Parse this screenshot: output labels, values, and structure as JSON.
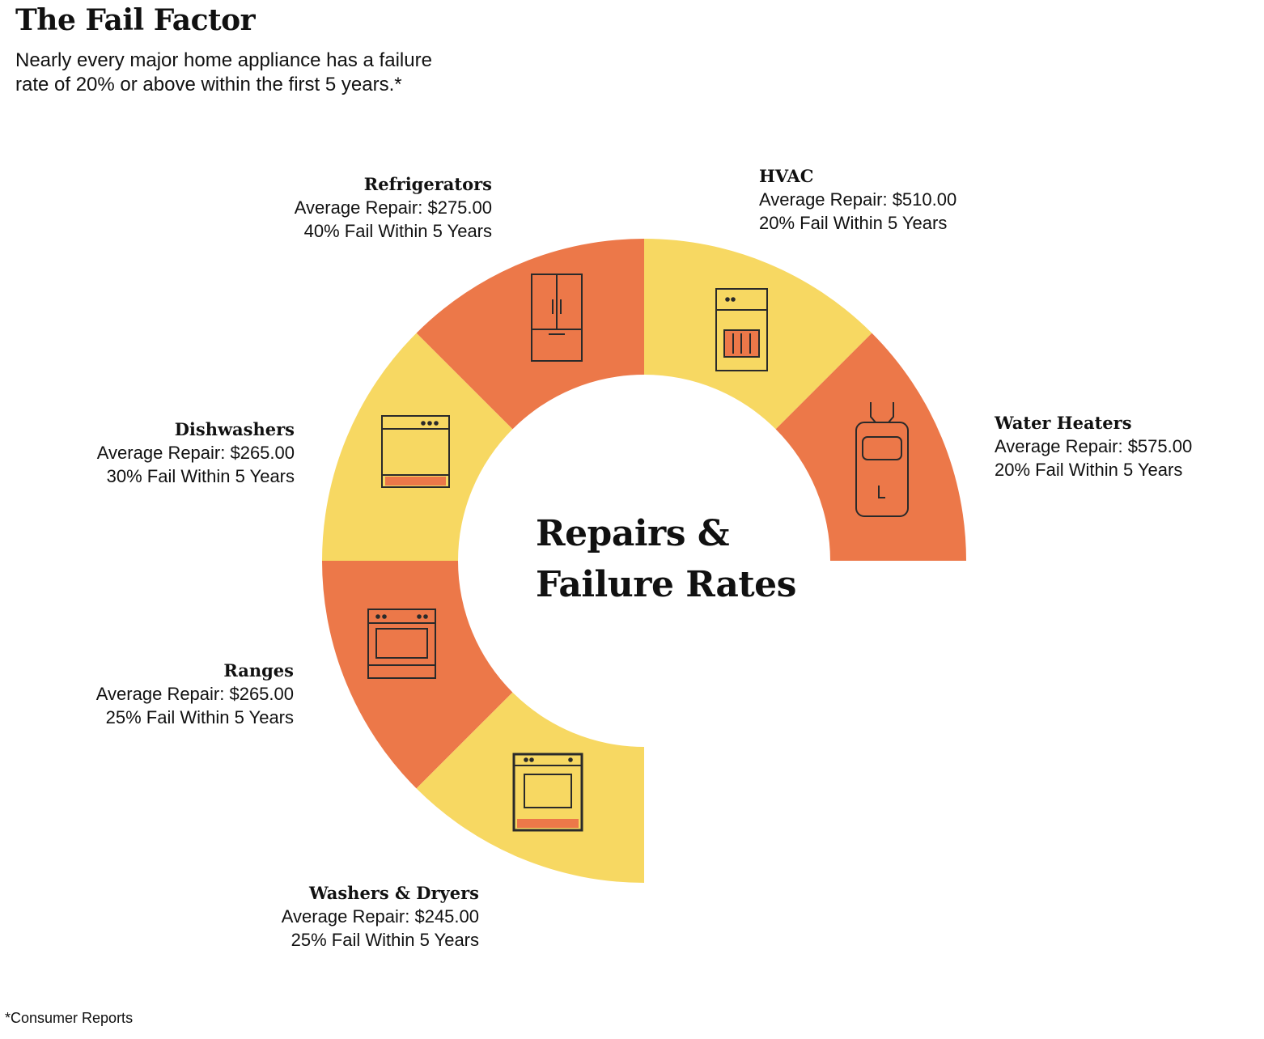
{
  "header": {
    "title": "The Fail Factor",
    "subtitle_line1": "Nearly every major home appliance has a failure",
    "subtitle_line2": "rate of 20% or above within the first 5 years.*"
  },
  "center_label": {
    "line1": "Repairs &",
    "line2": "Failure Rates"
  },
  "footnote": "*Consumer Reports",
  "colors": {
    "orange": "#EC7849",
    "yellow": "#F7D862",
    "icon_stroke": "#2A2A2A"
  },
  "appliances": [
    {
      "name": "Refrigerators",
      "repair": "Average Repair: $275.00",
      "fail": "40% Fail Within 5 Years",
      "color": "orange",
      "icon": "refrigerator-icon"
    },
    {
      "name": "HVAC",
      "repair": "Average Repair: $510.00",
      "fail": "20% Fail Within 5 Years",
      "color": "yellow",
      "icon": "hvac-unit-icon"
    },
    {
      "name": "Water Heaters",
      "repair": "Average Repair: $575.00",
      "fail": "20% Fail Within 5 Years",
      "color": "orange",
      "icon": "water-heater-icon"
    },
    {
      "name": "Dishwashers",
      "repair": "Average Repair: $265.00",
      "fail": "30% Fail Within 5 Years",
      "color": "yellow",
      "icon": "dishwasher-icon"
    },
    {
      "name": "Ranges",
      "repair": "Average Repair: $265.00",
      "fail": "25% Fail Within 5 Years",
      "color": "orange",
      "icon": "range-oven-icon"
    },
    {
      "name": "Washers & Dryers",
      "repair": "Average Repair: $245.00",
      "fail": "25% Fail Within 5 Years",
      "color": "yellow",
      "icon": "washer-dryer-icon"
    }
  ]
}
